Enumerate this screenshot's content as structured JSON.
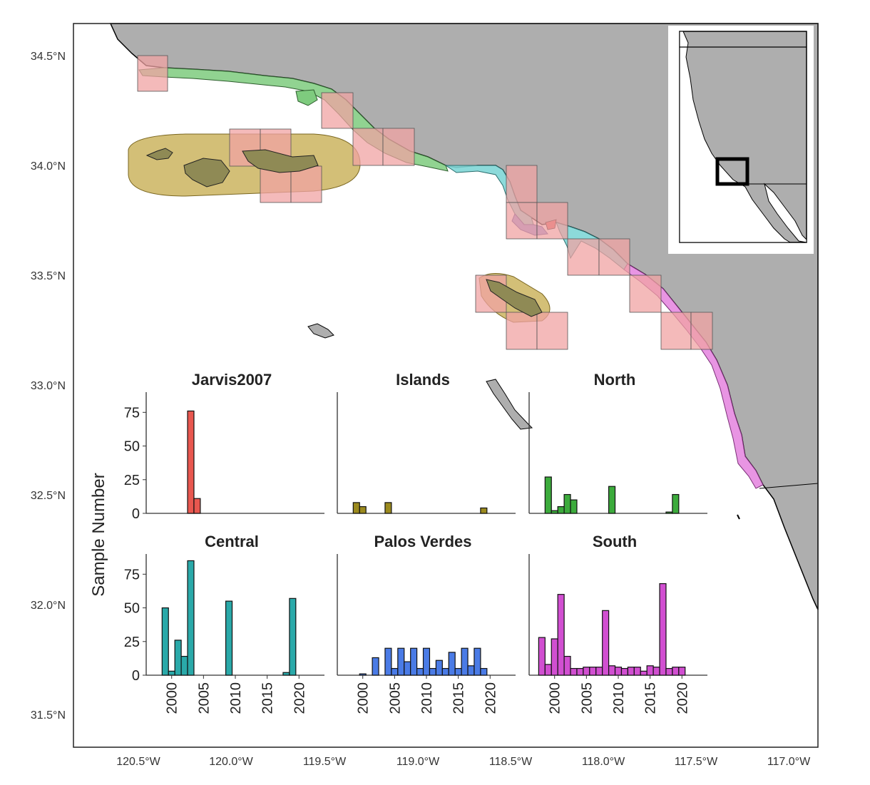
{
  "map": {
    "lat_labels": [
      "34.5°N",
      "34.0°N",
      "33.5°N",
      "33.0°N",
      "32.5°N",
      "32.0°N",
      "31.5°N"
    ],
    "lon_labels": [
      "120.5°W",
      "120.0°W",
      "119.5°W",
      "119.0°W",
      "118.5°W",
      "118.0°W",
      "117.5°W",
      "117.0°W"
    ],
    "colors": {
      "land": "#aeaeae",
      "grid_cell": "#f0a3a3",
      "islands_zone": "#c4a94a",
      "north_coast": "#7ecb7e",
      "central_coast": "#7fd6d6",
      "palos_verdes_coast": "#8c8fe0",
      "south_coast": "#e58ae0",
      "inset_box": "#000000"
    }
  },
  "chart_data": {
    "type": "bar",
    "ylabel": "Sample Number",
    "x_tick_labels": [
      "2000",
      "2005",
      "2010",
      "2015",
      "2020"
    ],
    "y_tick_labels": [
      "0",
      "25",
      "50",
      "75"
    ],
    "panels": [
      {
        "title": "Jarvis2007",
        "color": "#e8574f",
        "years": [
          2003,
          2004
        ],
        "values": [
          76,
          11
        ]
      },
      {
        "title": "Islands",
        "color": "#9b8a1e",
        "years": [
          1999,
          2000,
          2004,
          2019
        ],
        "values": [
          8,
          5,
          8,
          4
        ]
      },
      {
        "title": "North",
        "color": "#3cab3c",
        "years": [
          1999,
          2000,
          2001,
          2002,
          2003,
          2009,
          2018,
          2019
        ],
        "values": [
          27,
          2,
          5,
          14,
          10,
          20,
          1,
          14
        ]
      },
      {
        "title": "Central",
        "color": "#2aa9a9",
        "years": [
          1999,
          2000,
          2001,
          2002,
          2003,
          2009,
          2018,
          2019
        ],
        "values": [
          50,
          3,
          26,
          14,
          85,
          55,
          2,
          57
        ]
      },
      {
        "title": "Palos Verdes",
        "color": "#4a7be6",
        "years": [
          2000,
          2002,
          2004,
          2005,
          2006,
          2007,
          2008,
          2009,
          2010,
          2011,
          2012,
          2013,
          2014,
          2015,
          2016,
          2017,
          2018,
          2019,
          2020
        ],
        "values": [
          1,
          13,
          20,
          5,
          20,
          10,
          20,
          5,
          20,
          5,
          11,
          5,
          17,
          5,
          20,
          7,
          20,
          5,
          0
        ]
      },
      {
        "title": "South",
        "color": "#d14fd1",
        "years": [
          1998,
          1999,
          2000,
          2001,
          2002,
          2003,
          2004,
          2005,
          2006,
          2007,
          2008,
          2009,
          2010,
          2011,
          2012,
          2013,
          2014,
          2015,
          2016,
          2017,
          2018,
          2019,
          2020
        ],
        "values": [
          28,
          8,
          27,
          60,
          14,
          5,
          5,
          6,
          6,
          6,
          48,
          7,
          6,
          5,
          6,
          6,
          3,
          7,
          6,
          68,
          5,
          6,
          6
        ]
      }
    ]
  }
}
